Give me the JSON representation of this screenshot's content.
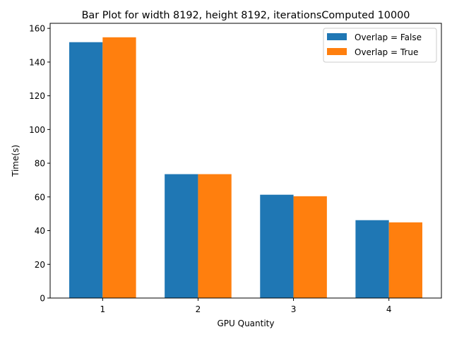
{
  "chart_data": {
    "type": "bar",
    "title": "Bar Plot for width 8192, height 8192, iterationsComputed 10000",
    "xlabel": "GPU Quantity",
    "ylabel": "Time(s)",
    "categories": [
      "1",
      "2",
      "3",
      "4"
    ],
    "series": [
      {
        "name": "Overlap = False",
        "color": "#1f77b4",
        "values": [
          151.8,
          73.5,
          61.3,
          46.2
        ]
      },
      {
        "name": "Overlap = True",
        "color": "#ff7f0e",
        "values": [
          154.7,
          73.5,
          60.4,
          44.9
        ]
      }
    ],
    "ylim": [
      0,
      163
    ],
    "yticks": [
      0,
      20,
      40,
      60,
      80,
      100,
      120,
      140,
      160
    ],
    "legend_position": "top-right",
    "grid": false
  }
}
